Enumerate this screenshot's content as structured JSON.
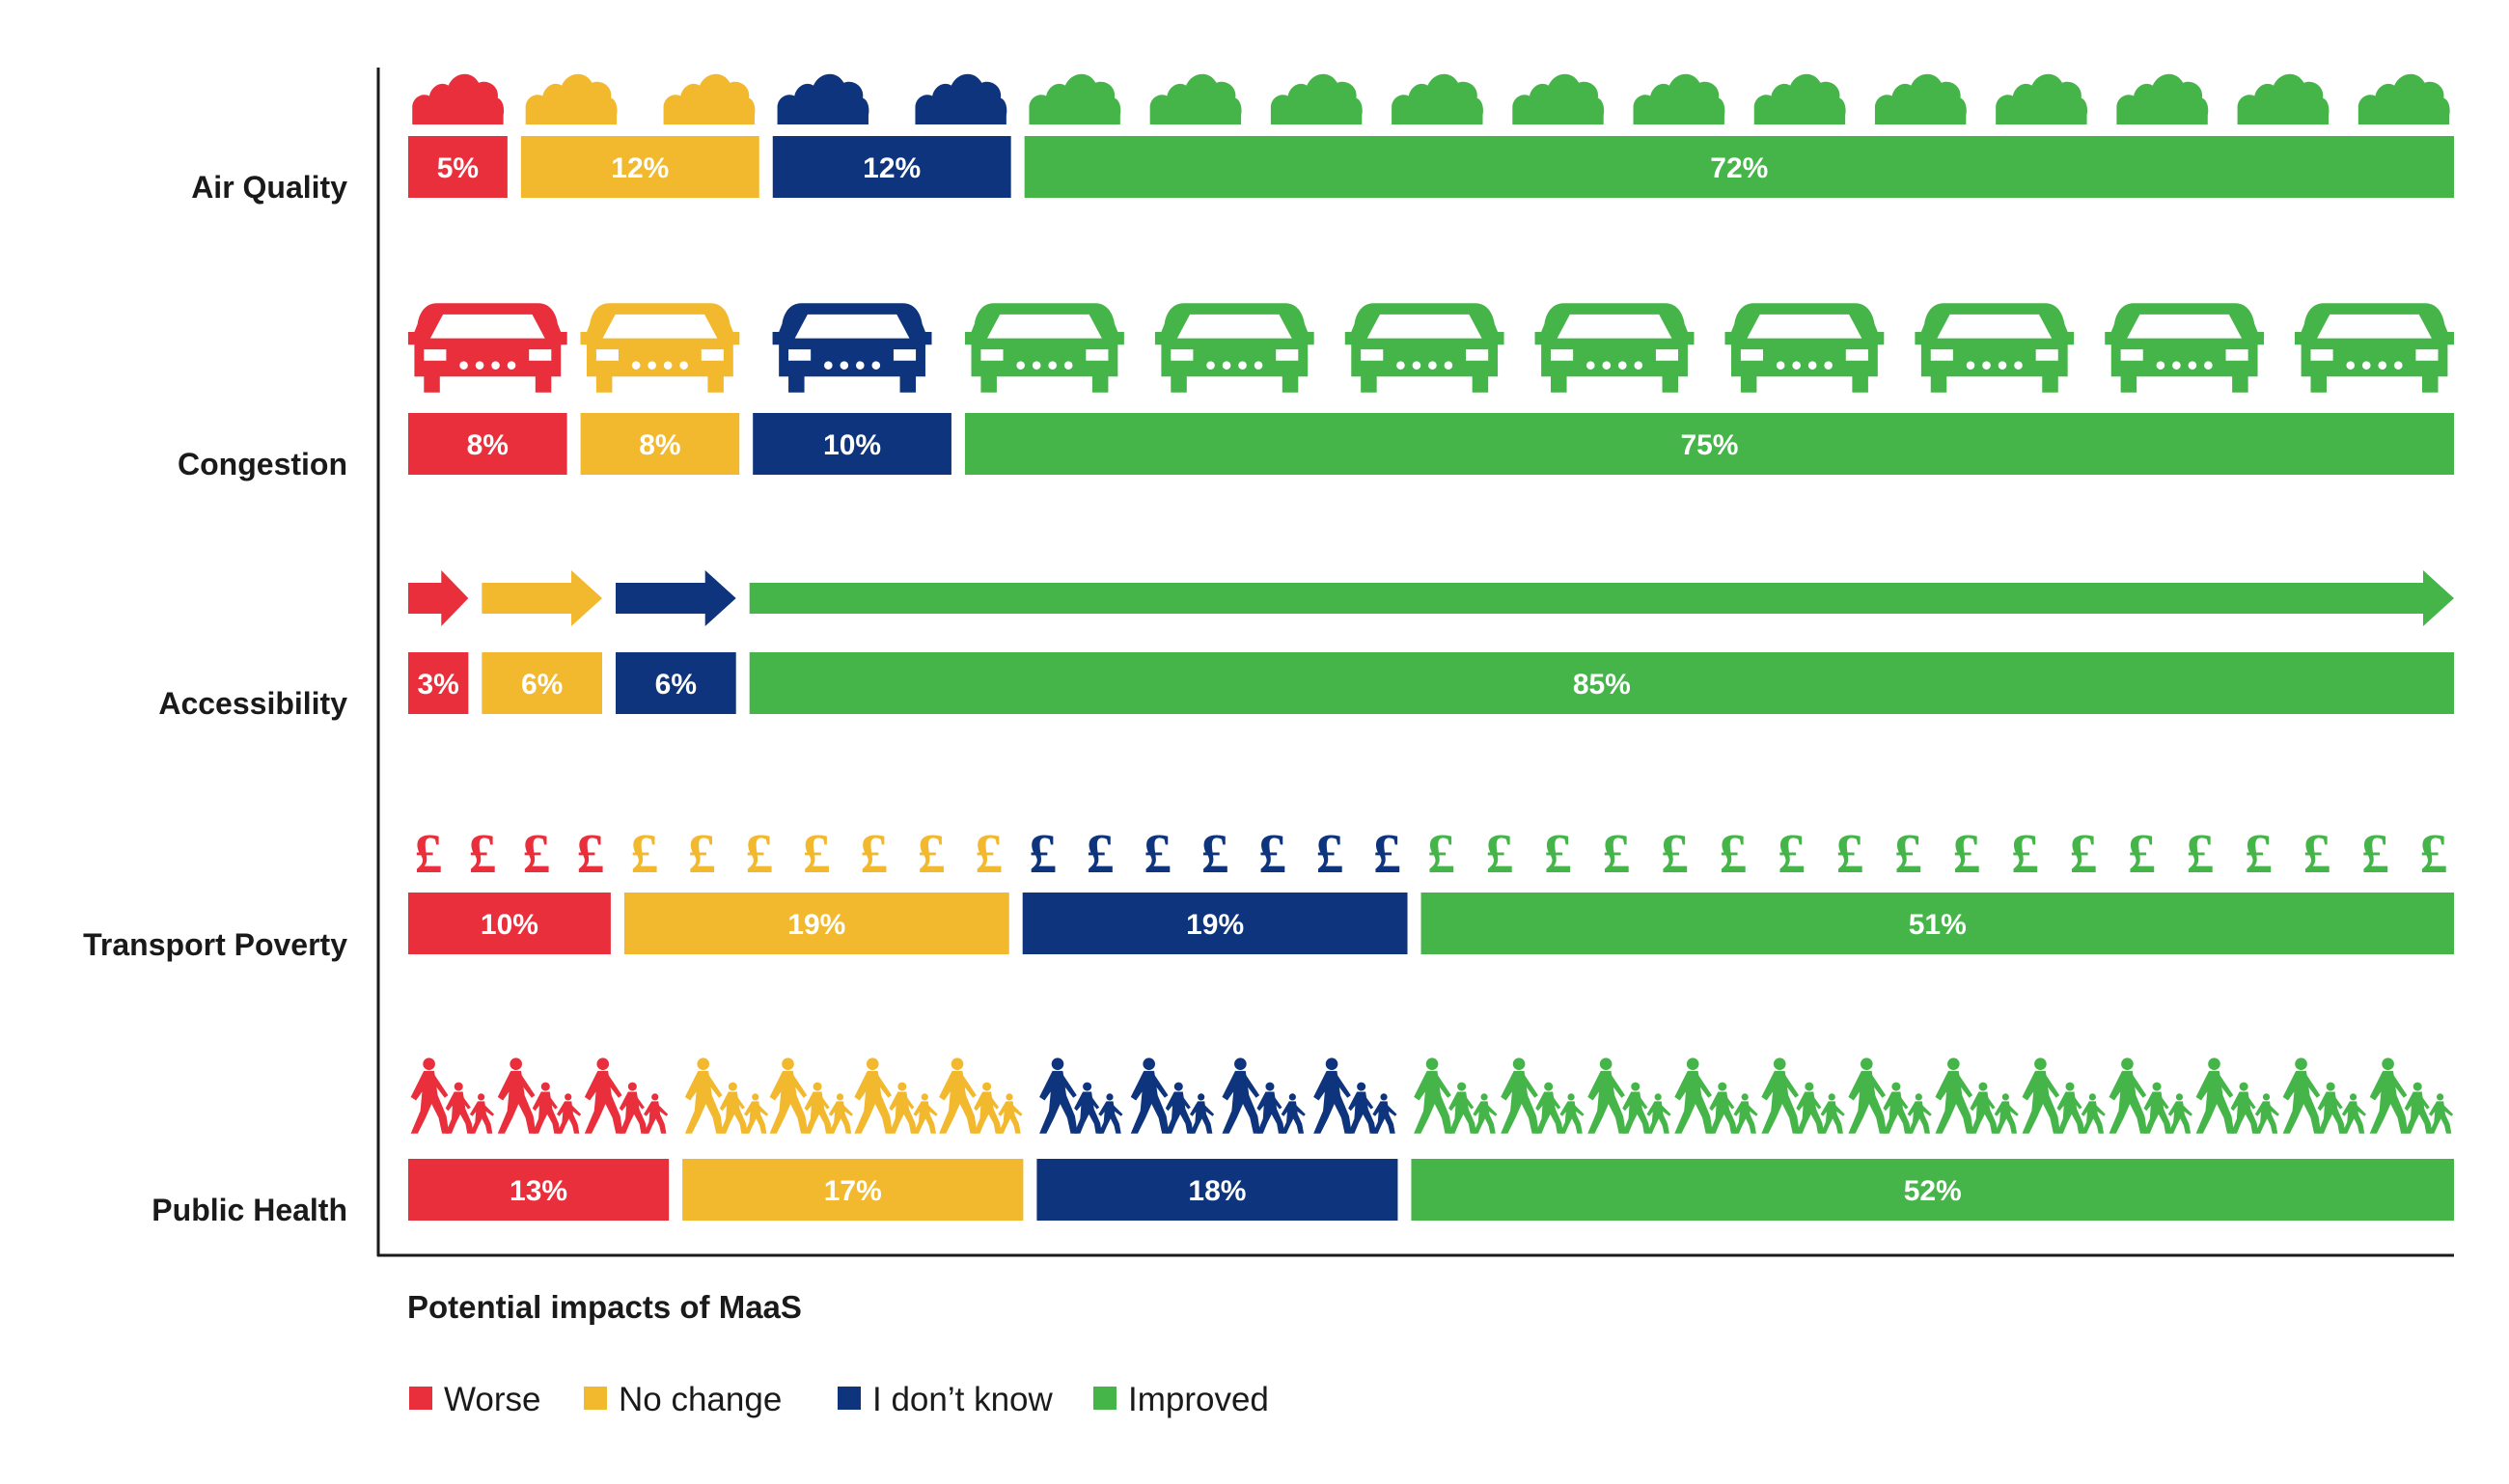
{
  "chart_data": {
    "type": "bar",
    "title": "Potential impacts of MaaS",
    "stacked": true,
    "orientation": "horizontal",
    "grid": false,
    "legend_position": "bottom-left",
    "categories": [
      "Air Quality",
      "Congestion",
      "Accessibility",
      "Transport Poverty",
      "Public Health"
    ],
    "series": [
      {
        "name": "Worse",
        "color": "#ea2f3c",
        "values": [
          5,
          8,
          3,
          10,
          13
        ],
        "labels": [
          "5%",
          "8%",
          "3%",
          "10%",
          "13%"
        ]
      },
      {
        "name": "No change",
        "color": "#f2b82e",
        "values": [
          12,
          8,
          6,
          19,
          17
        ],
        "labels": [
          "12%",
          "8%",
          "6%",
          "19%",
          "17%"
        ]
      },
      {
        "name": "I don’t know",
        "color": "#0d347c",
        "values": [
          12,
          10,
          6,
          19,
          18
        ],
        "labels": [
          "12%",
          "10%",
          "6%",
          "19%",
          "18%"
        ]
      },
      {
        "name": "Improved",
        "color": "#45b549",
        "values": [
          72,
          75,
          85,
          51,
          52
        ],
        "labels": [
          "72%",
          "75%",
          "85%",
          "51%",
          "52%"
        ]
      }
    ],
    "row_icons": [
      "cloud-icon",
      "car-icon",
      "arrow-icon",
      "pound-icon",
      "walking-family-icon"
    ],
    "pound_symbol": "£"
  }
}
